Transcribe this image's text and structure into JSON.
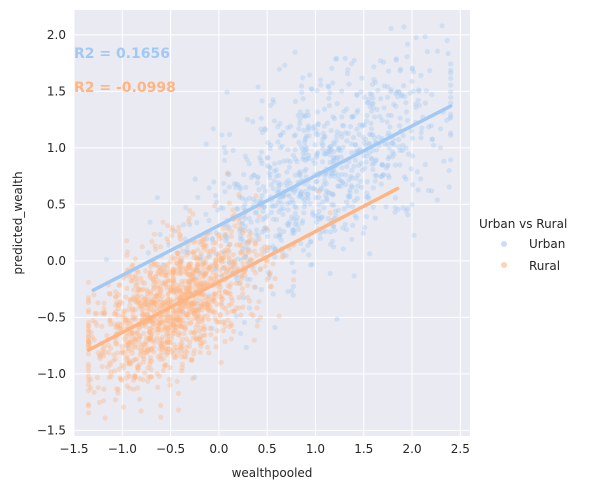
{
  "chart_data": {
    "type": "scatter",
    "xlabel": "wealthpooled",
    "ylabel": "predicted_wealth",
    "xlim": [
      -1.5,
      2.6
    ],
    "ylim": [
      -1.55,
      2.22
    ],
    "xticks": [
      -1.5,
      -1.0,
      -0.5,
      0.0,
      0.5,
      1.0,
      1.5,
      2.0,
      2.5
    ],
    "xtick_labels": [
      "−1.5",
      "−1.0",
      "−0.5",
      "0.0",
      "0.5",
      "1.0",
      "1.5",
      "2.0",
      "2.5"
    ],
    "yticks": [
      -1.5,
      -1.0,
      -0.5,
      0.0,
      0.5,
      1.0,
      1.5,
      2.0
    ],
    "ytick_labels": [
      "−1.5",
      "−1.0",
      "−0.5",
      "0.0",
      "0.5",
      "1.0",
      "1.5",
      "2.0"
    ],
    "grid": true,
    "background": "#eaeaf2",
    "legend": {
      "title": "Urban vs Rural",
      "placement": "right",
      "entries": [
        "Urban",
        "Rural"
      ]
    },
    "annotations": [
      {
        "text": "R2 = 0.1656",
        "series": "Urban"
      },
      {
        "text": "R2 = -0.0998",
        "series": "Rural"
      }
    ],
    "series": [
      {
        "name": "Urban",
        "color": "#a1c9f4",
        "point_count": 900,
        "x_mean": 1.05,
        "x_sd": 0.65,
        "x_range": [
          -1.3,
          2.4
        ],
        "regression": {
          "x_start": -1.3,
          "x_end": 2.4,
          "y_start": -0.26,
          "y_end": 1.37
        },
        "residual_sd": 0.4
      },
      {
        "name": "Rural",
        "color": "#ffb482",
        "point_count": 1300,
        "x_mean": -0.45,
        "x_sd": 0.45,
        "x_range": [
          -1.35,
          1.85
        ],
        "regression": {
          "x_start": -1.35,
          "x_end": 1.85,
          "y_start": -0.79,
          "y_end": 0.64
        },
        "residual_sd": 0.28
      }
    ]
  }
}
